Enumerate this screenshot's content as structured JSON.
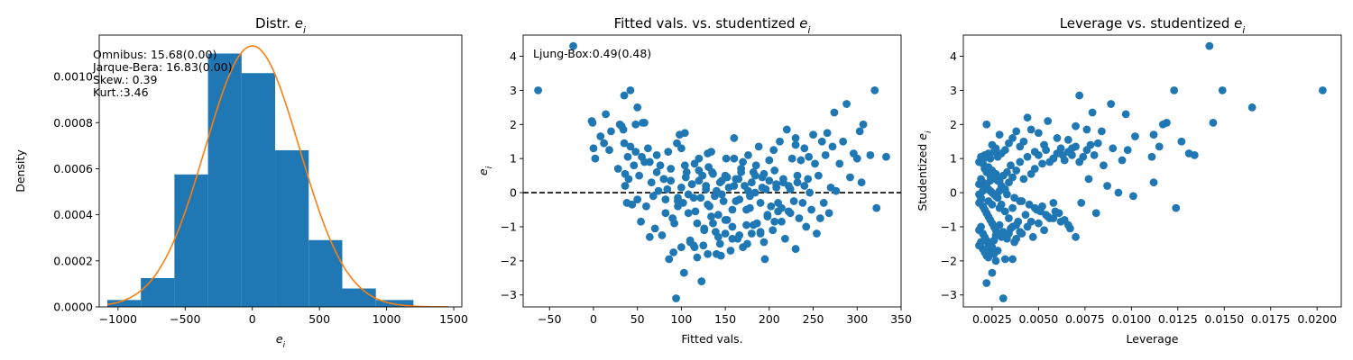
{
  "chart_data": [
    {
      "type": "histogram",
      "title": "Distr. ",
      "title_sym": "e",
      "title_sub": "i",
      "xlabel_sym": "e",
      "xlabel_sub": "i",
      "ylabel": "Density",
      "xlim": [
        -1140,
        1560
      ],
      "ylim": [
        0,
        0.00118
      ],
      "xticks": [
        -1000,
        -500,
        0,
        500,
        1000,
        1500
      ],
      "xtick_labels": [
        "−1000",
        "−500",
        "0",
        "500",
        "1000",
        "1500"
      ],
      "yticks": [
        0,
        0.0002,
        0.0004,
        0.0006,
        0.0008,
        0.001
      ],
      "ytick_labels": [
        "0.0000",
        "0.0002",
        "0.0004",
        "0.0006",
        "0.0008",
        "0.0010"
      ],
      "bins": [
        {
          "x0": -1080,
          "x1": -830,
          "density": 3e-05
        },
        {
          "x0": -830,
          "x1": -580,
          "density": 0.000125
        },
        {
          "x0": -580,
          "x1": -330,
          "density": 0.000575
        },
        {
          "x0": -330,
          "x1": -80,
          "density": 0.0011
        },
        {
          "x0": -80,
          "x1": 170,
          "density": 0.001015
        },
        {
          "x0": 170,
          "x1": 420,
          "density": 0.00068
        },
        {
          "x0": 420,
          "x1": 670,
          "density": 0.00029
        },
        {
          "x0": 670,
          "x1": 920,
          "density": 8e-05
        },
        {
          "x0": 920,
          "x1": 1200,
          "density": 3e-05
        }
      ],
      "normal_curve": {
        "mean": 0,
        "sd": 352,
        "x_range": [
          -1080,
          1460
        ]
      },
      "annotations": [
        "Omnibus: 15.68(0.00)",
        "Jarque-Bera: 16.83(0.00)",
        "Skew.: 0.39",
        "Kurt.:3.46"
      ],
      "bar_color": "#1f77b4",
      "curve_color": "#ff7f0e"
    },
    {
      "type": "scatter",
      "title": "Fitted vals. vs. studentized ",
      "title_sym": "e",
      "title_sub": "i",
      "xlabel": "Fitted vals.",
      "ylabel_sym": "e",
      "ylabel_sub": "i",
      "xlim": [
        -80,
        350
      ],
      "ylim": [
        -3.35,
        4.62
      ],
      "xticks": [
        -50,
        0,
        50,
        100,
        150,
        200,
        250,
        300,
        350
      ],
      "xtick_labels": [
        "−50",
        "0",
        "50",
        "100",
        "150",
        "200",
        "250",
        "300",
        "350"
      ],
      "yticks": [
        -3,
        -2,
        -1,
        0,
        1,
        2,
        3,
        4
      ],
      "ytick_labels": [
        "−3",
        "−2",
        "−1",
        "0",
        "1",
        "2",
        "3",
        "4"
      ],
      "hline": 0,
      "annotation": "Ljung-Box:0.49(0.48)",
      "points_x": [
        -63,
        -23,
        -2,
        -1,
        0,
        2,
        8,
        12,
        14,
        18,
        20,
        28,
        30,
        32,
        34,
        35,
        36,
        36,
        38,
        39,
        40,
        42,
        44,
        46,
        48,
        48,
        50,
        52,
        54,
        55,
        56,
        58,
        60,
        62,
        64,
        66,
        68,
        70,
        72,
        74,
        76,
        78,
        80,
        82,
        84,
        86,
        88,
        90,
        92,
        94,
        95,
        96,
        98,
        100,
        102,
        103,
        104,
        106,
        108,
        110,
        112,
        114,
        115,
        116,
        118,
        120,
        122,
        123,
        124,
        126,
        128,
        130,
        131,
        132,
        134,
        136,
        138,
        139,
        140,
        142,
        144,
        146,
        148,
        150,
        151,
        152,
        154,
        156,
        158,
        160,
        162,
        164,
        166,
        168,
        170,
        172,
        174,
        176,
        178,
        180,
        182,
        184,
        186,
        188,
        190,
        192,
        194,
        196,
        198,
        200,
        202,
        204,
        206,
        208,
        210,
        212,
        214,
        216,
        218,
        220,
        222,
        224,
        226,
        228,
        230,
        232,
        234,
        236,
        238,
        240,
        242,
        244,
        246,
        248,
        250,
        252,
        254,
        256,
        258,
        260,
        262,
        264,
        266,
        268,
        270,
        272,
        274,
        276,
        280,
        284,
        288,
        292,
        296,
        300,
        303,
        305,
        307,
        315,
        320,
        322,
        333,
        35,
        42,
        50,
        58,
        64,
        72,
        80,
        88,
        96,
        104,
        112,
        120,
        128,
        136,
        144,
        152,
        160,
        168,
        176,
        184,
        192,
        200,
        208,
        216,
        224,
        232,
        240,
        100,
        108,
        118,
        126,
        134,
        142,
        150,
        158,
        166,
        174,
        182,
        190,
        198,
        206,
        214,
        222,
        230,
        91,
        110,
        125,
        140,
        158,
        175,
        190,
        210,
        82,
        96,
        114,
        130,
        146,
        162,
        178,
        194,
        105,
        120,
        135,
        150,
        165,
        180,
        195,
        115,
        145,
        170,
        85,
        100,
        130,
        160,
        185,
        205,
        230,
        245,
        255
      ],
      "points_y": [
        3.0,
        4.3,
        2.1,
        2.05,
        1.3,
        1.0,
        1.65,
        1.45,
        2.3,
        1.25,
        1.8,
        0.7,
        2.0,
        1.95,
        1.85,
        2.85,
        0.55,
        0.2,
        -0.3,
        1.05,
        0.4,
        1.35,
        -0.35,
        0.8,
        1.2,
        2.0,
        -0.2,
        0.5,
        -0.85,
        1.05,
        2.05,
        0.9,
        -0.4,
        1.3,
        -1.3,
        0.3,
        -0.1,
        -1.05,
        1.1,
        0.05,
        0.8,
        -1.25,
        0.4,
        -0.6,
        0.1,
        -1.95,
        0.35,
        -0.75,
        -0.9,
        -3.1,
        1.45,
        -0.25,
        1.7,
        -1.6,
        -0.3,
        -2.35,
        1.75,
        0.6,
        -0.05,
        -1.4,
        0.25,
        -1.55,
        0.85,
        -0.55,
        -1.9,
        1.0,
        -0.15,
        -2.6,
        0.5,
        -1.05,
        0.2,
        -1.8,
        0.75,
        -0.4,
        1.2,
        -0.9,
        -0.1,
        -1.15,
        0.05,
        -0.65,
        -1.5,
        0.35,
        -0.25,
        -1.2,
        1.0,
        -0.8,
        0.15,
        -1.7,
        -0.5,
        1.6,
        0.4,
        -1.35,
        -0.2,
        0.7,
        -1.6,
        0.2,
        -0.95,
        1.1,
        -0.45,
        -1.2,
        0.6,
        0.0,
        -0.9,
        1.35,
        -0.3,
        0.45,
        -1.45,
        0.1,
        -0.7,
        0.95,
        -0.4,
        -1.1,
        0.65,
        0.15,
        -0.55,
        1.5,
        -0.85,
        0.3,
        -1.35,
        1.85,
        0.2,
        -0.6,
        1.0,
        -0.25,
        1.6,
        0.5,
        -0.75,
        0.95,
        -0.3,
        1.3,
        -1.0,
        0.4,
        0.0,
        -0.5,
        1.7,
        0.85,
        -1.2,
        0.5,
        -0.75,
        1.5,
        -0.3,
        1.1,
        1.75,
        -0.6,
        0.15,
        1.35,
        2.35,
        0.05,
        0.85,
        1.5,
        2.6,
        0.45,
        1.15,
        1.0,
        1.8,
        0.3,
        2.0,
        1.1,
        3.0,
        -0.45,
        1.05,
        1.45,
        3.0,
        2.5,
        2.05,
        0.9,
        0.6,
        0.4,
        0.7,
        -0.15,
        0.8,
        0.25,
        0.65,
        0.1,
        0.55,
        0.3,
        0.45,
        0.2,
        0.6,
        0.05,
        0.5,
        0.15,
        0.35,
        0.25,
        0.4,
        0.1,
        0.3,
        0.2,
        0.15,
        -0.6,
        -0.9,
        -1.1,
        -0.7,
        -1.3,
        -0.8,
        -1.0,
        -1.25,
        -0.5,
        -0.95,
        -1.15,
        -0.65,
        -0.85,
        -0.45,
        -0.55,
        -1.65,
        -1.75,
        -1.45,
        -1.55,
        -1.8,
        -1.35,
        -1.5,
        -1.2,
        -0.3,
        -0.2,
        -0.4,
        -0.15,
        -0.35,
        -0.05,
        -0.25,
        -0.1,
        0.55,
        0.45,
        0.35,
        0.6,
        0.5,
        0.4,
        0.3,
        -1.95,
        -1.6,
        -1.85,
        0.9,
        1.2,
        1.3,
        1.15,
        1.0,
        0.8,
        1.25,
        1.4,
        1.05
      ],
      "point_color": "#1f77b4"
    },
    {
      "type": "scatter",
      "title": "Leverage vs. studentized ",
      "title_sym": "e",
      "title_sub": "i",
      "xlabel": "Leverage",
      "ylabel": "Studentized ",
      "ylabel_sym": "e",
      "ylabel_sub": "i",
      "xlim": [
        0.00095,
        0.0213
      ],
      "ylim": [
        -3.35,
        4.62
      ],
      "xticks": [
        0.0025,
        0.005,
        0.0075,
        0.01,
        0.0125,
        0.015,
        0.0175,
        0.02
      ],
      "xtick_labels": [
        "0.0025",
        "0.0050",
        "0.0075",
        "0.0100",
        "0.0125",
        "0.0150",
        "0.0175",
        "0.0200"
      ],
      "yticks": [
        -3,
        -2,
        -1,
        0,
        1,
        2,
        3,
        4
      ],
      "ytick_labels": [
        "−3",
        "−2",
        "−1",
        "0",
        "1",
        "2",
        "3",
        "4"
      ],
      "points_x": [
        0.0142,
        0.0149,
        0.0203,
        0.0165,
        0.0144,
        0.0123,
        0.0119,
        0.0117,
        0.0112,
        0.0127,
        0.0134,
        0.0131,
        0.0112,
        0.0124,
        0.0115,
        0.0111,
        0.0102,
        0.0098,
        0.0097,
        0.0089,
        0.0084,
        0.0082,
        0.0079,
        0.0076,
        0.0072,
        0.007,
        0.0068,
        0.0066,
        0.0063,
        0.006,
        0.0058,
        0.0055,
        0.0053,
        0.005,
        0.0048,
        0.0046,
        0.0044,
        0.0042,
        0.004,
        0.0038,
        0.0036,
        0.0034,
        0.0032,
        0.003,
        0.0029,
        0.0028,
        0.0027,
        0.0026,
        0.0025,
        0.0024,
        0.0023,
        0.0022,
        0.0021,
        0.002,
        0.0019,
        0.0018,
        0.002,
        0.0021,
        0.0022,
        0.0023,
        0.0024,
        0.0025,
        0.0026,
        0.0027,
        0.0028,
        0.0019,
        0.0018,
        0.002,
        0.0021,
        0.0022,
        0.0023,
        0.0024,
        0.0025,
        0.0026,
        0.0027,
        0.0028,
        0.0029,
        0.003,
        0.0031,
        0.0032,
        0.0033,
        0.0034,
        0.0035,
        0.0036,
        0.0038,
        0.004,
        0.0042,
        0.0044,
        0.0046,
        0.0048,
        0.005,
        0.0052,
        0.0054,
        0.0056,
        0.0058,
        0.006,
        0.0062,
        0.0064,
        0.0066,
        0.0068,
        0.007,
        0.0072,
        0.0074,
        0.0076,
        0.0078,
        0.008,
        0.0085,
        0.009,
        0.0095,
        0.0019,
        0.0018,
        0.002,
        0.0021,
        0.0022,
        0.0023,
        0.0024,
        0.0025,
        0.0026,
        0.0027,
        0.0028,
        0.003,
        0.0032,
        0.0034,
        0.0036,
        0.0038,
        0.004,
        0.0043,
        0.0046,
        0.0049,
        0.0052,
        0.0055,
        0.0058,
        0.0061,
        0.0064,
        0.0067,
        0.007,
        0.0019,
        0.0018,
        0.002,
        0.0021,
        0.0022,
        0.0023,
        0.0024,
        0.0025,
        0.0026,
        0.0027,
        0.0029,
        0.0031,
        0.0033,
        0.0035,
        0.0037,
        0.0039,
        0.0041,
        0.0044,
        0.0047,
        0.005,
        0.0053,
        0.0056,
        0.0059,
        0.0019,
        0.0018,
        0.002,
        0.0021,
        0.0022,
        0.0023,
        0.0024,
        0.0025,
        0.0026,
        0.0028,
        0.003,
        0.0032,
        0.0034,
        0.0036,
        0.0038,
        0.004,
        0.0019,
        0.0018,
        0.002,
        0.0021,
        0.0022,
        0.0023,
        0.0024,
        0.0025,
        0.0027,
        0.0029,
        0.0022,
        0.0025,
        0.0036,
        0.0031,
        0.0027,
        0.0066,
        0.0062,
        0.0058,
        0.0054,
        0.0051,
        0.0048,
        0.0045,
        0.0041,
        0.0037,
        0.0033,
        0.0029,
        0.0101,
        0.0093,
        0.0087,
        0.0081,
        0.0077,
        0.0073
      ],
      "points_y": [
        4.3,
        3.0,
        3.0,
        2.5,
        2.05,
        3.0,
        2.05,
        2.0,
        1.7,
        1.5,
        1.1,
        1.15,
        0.3,
        -0.45,
        1.35,
        1.05,
        1.65,
        1.25,
        2.3,
        2.6,
        1.8,
        1.45,
        2.35,
        1.85,
        2.85,
        1.95,
        1.3,
        1.55,
        1.1,
        1.6,
        1.0,
        2.1,
        1.4,
        1.75,
        1.2,
        1.85,
        2.2,
        1.5,
        1.35,
        1.8,
        1.6,
        1.45,
        1.25,
        1.15,
        1.7,
        1.05,
        1.3,
        1.2,
        1.4,
        1.0,
        1.15,
        2.0,
        1.1,
        0.95,
        1.05,
        0.9,
        0.85,
        0.7,
        0.6,
        0.75,
        0.5,
        0.65,
        0.45,
        0.55,
        0.35,
        0.4,
        0.25,
        0.3,
        0.2,
        0.15,
        0.1,
        0.05,
        0.0,
        -0.05,
        -0.1,
        -0.15,
        0.35,
        0.2,
        0.5,
        0.1,
        0.6,
        0.3,
        0.8,
        0.45,
        0.65,
        0.9,
        0.4,
        1.05,
        0.55,
        0.7,
        1.1,
        0.85,
        1.25,
        0.9,
        1.0,
        1.15,
        1.3,
        0.95,
        1.2,
        1.1,
        1.35,
        0.9,
        1.05,
        1.25,
        1.4,
        1.1,
        0.8,
        1.3,
        0.95,
        -0.2,
        -0.3,
        -0.4,
        -0.5,
        -0.6,
        -0.7,
        -0.8,
        -0.9,
        -1.0,
        -1.1,
        -1.2,
        -0.35,
        -0.55,
        -0.75,
        -0.45,
        -0.95,
        -0.25,
        -0.65,
        -0.85,
        -0.5,
        -0.4,
        -0.7,
        -0.3,
        -0.6,
        -0.8,
        -1.05,
        -1.3,
        -1.0,
        -1.1,
        -1.2,
        -1.3,
        -1.4,
        -1.5,
        -1.6,
        -1.7,
        -1.8,
        -1.25,
        -0.95,
        -1.15,
        -1.35,
        -1.05,
        -1.45,
        -0.85,
        -1.2,
        -1.0,
        -1.3,
        -0.9,
        -1.1,
        -0.75,
        -0.55,
        -1.45,
        -1.55,
        -1.65,
        -1.75,
        -1.85,
        -1.9,
        -1.5,
        -1.6,
        -1.4,
        -1.7,
        -1.3,
        -1.95,
        -1.2,
        -1.0,
        -1.35,
        -1.15,
        -0.15,
        -0.05,
        0.05,
        0.15,
        0.25,
        -0.25,
        0.35,
        -0.35,
        0.45,
        -0.45,
        -2.65,
        -2.35,
        -1.95,
        -3.1,
        -2.0,
        -0.95,
        -0.85,
        -0.75,
        -0.65,
        -0.55,
        -0.45,
        -0.35,
        -0.25,
        -0.15,
        -0.05,
        0.05,
        -0.1,
        0.0,
        0.2,
        -0.6,
        0.4,
        -0.3
      ],
      "point_color": "#1f77b4"
    }
  ]
}
